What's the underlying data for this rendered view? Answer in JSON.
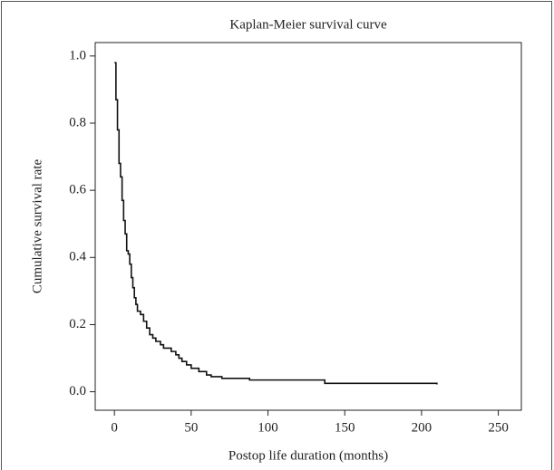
{
  "chart_data": {
    "type": "step",
    "title": "Kaplan-Meier survival curve",
    "x_label": "Postop life duration (months)",
    "y_label": "Cumulative survival rate",
    "x": [
      0,
      1,
      2,
      3,
      4,
      5,
      6,
      7,
      8,
      9,
      10,
      11,
      12,
      13,
      14,
      15,
      17,
      19,
      21,
      23,
      25,
      27,
      30,
      32,
      37,
      40,
      42,
      44,
      47,
      50,
      55,
      60,
      63,
      70,
      88,
      137,
      210
    ],
    "series": [
      {
        "name": "Survival",
        "color": "#111111",
        "values": [
          0.98,
          0.87,
          0.78,
          0.68,
          0.64,
          0.57,
          0.51,
          0.47,
          0.42,
          0.41,
          0.38,
          0.34,
          0.31,
          0.28,
          0.26,
          0.24,
          0.23,
          0.21,
          0.19,
          0.17,
          0.16,
          0.15,
          0.14,
          0.13,
          0.12,
          0.11,
          0.1,
          0.09,
          0.08,
          0.07,
          0.06,
          0.05,
          0.045,
          0.04,
          0.035,
          0.025,
          0.022
        ]
      }
    ],
    "xlim": [
      -12.5,
      265
    ],
    "xticks": [
      0,
      50,
      100,
      150,
      200,
      250
    ],
    "ylim": [
      -0.055,
      1.04
    ],
    "yticks": [
      {
        "value": 0,
        "label": "0.0"
      },
      {
        "value": 0.2,
        "label": "0.2"
      },
      {
        "value": 0.4,
        "label": "0.4"
      },
      {
        "value": 0.6,
        "label": "0.6"
      },
      {
        "value": 0.8,
        "label": "0.8"
      },
      {
        "value": 1,
        "label": "1.0"
      }
    ]
  }
}
